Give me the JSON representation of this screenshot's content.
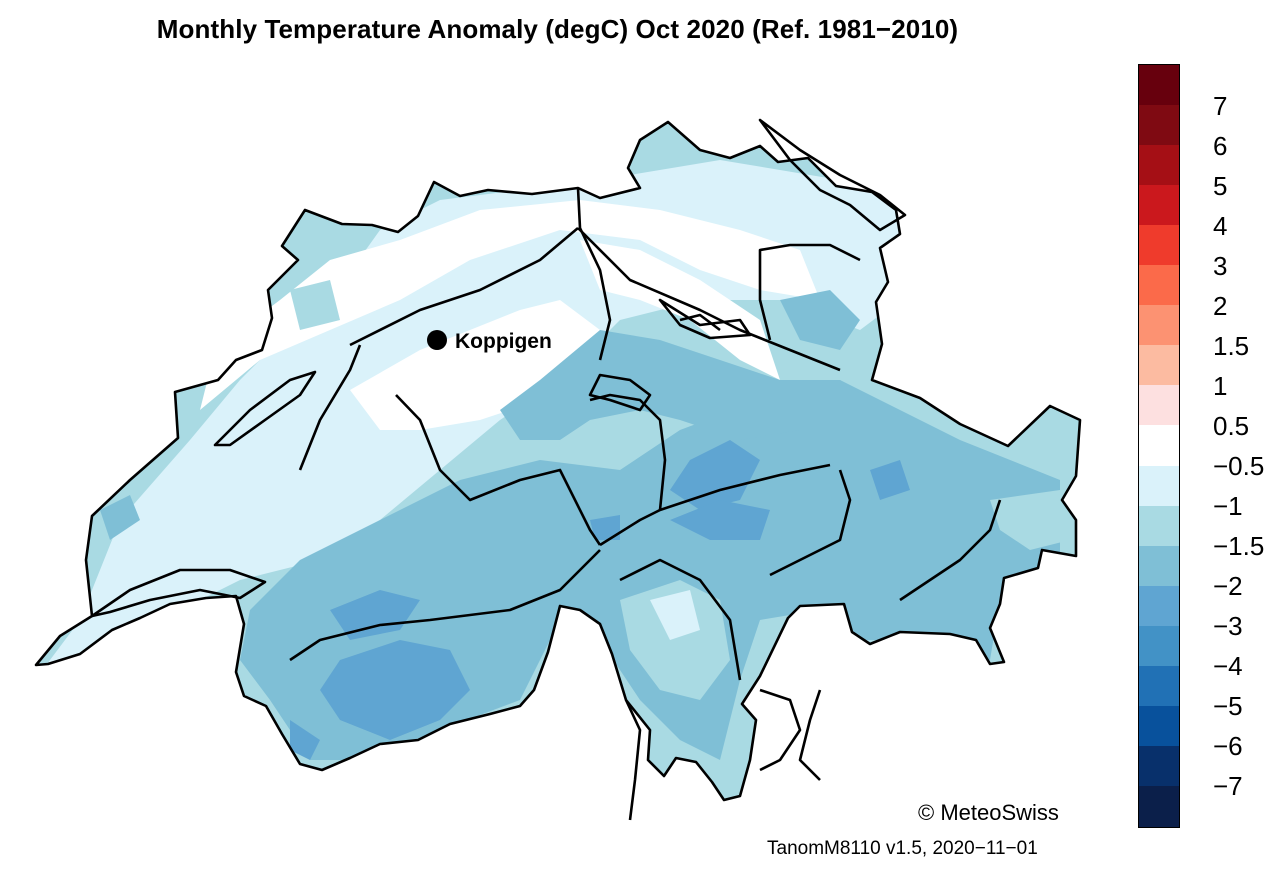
{
  "title": "Monthly Temperature Anomaly (degC) Oct 2020  (Ref. 1981−2010)",
  "station": {
    "name": "Koppigen"
  },
  "credit": "© MeteoSwiss",
  "version": "TanomM8110 v1.5, 2020−11−01",
  "colorbar": {
    "levels": [
      "7",
      "6",
      "5",
      "4",
      "3",
      "2",
      "1.5",
      "1",
      "0.5",
      "−0.5",
      "−1",
      "−1.5",
      "−2",
      "−3",
      "−4",
      "−5",
      "−6",
      "−7"
    ],
    "colors": [
      "#67000d",
      "#7f0a12",
      "#a50f15",
      "#cb181d",
      "#ef3b2c",
      "#fb6a4a",
      "#fc9272",
      "#fcbba1",
      "#fde0e0",
      "#ffffff",
      "#daf2fa",
      "#a9dae3",
      "#7fbfd6",
      "#5fa5d2",
      "#4292c6",
      "#2171b5",
      "#08519c",
      "#08306b",
      "#0b1f4a"
    ]
  }
}
